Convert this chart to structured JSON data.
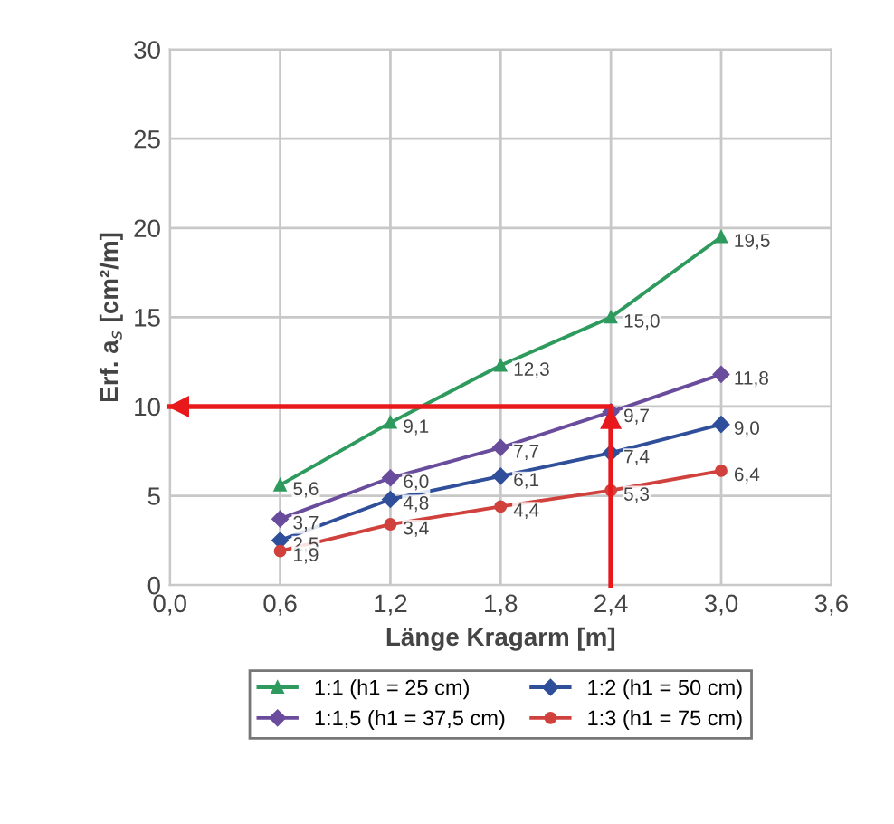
{
  "chart_data": {
    "type": "line",
    "xlabel": "Länge Kragarm [m]",
    "ylabel": "Erf. a$_{s}$ [cm²/m]",
    "x": [
      0.6,
      1.2,
      1.8,
      2.4,
      3.0
    ],
    "series": [
      {
        "name": "1:1 (h1 = 25 cm)",
        "color": "#2e9a5e",
        "marker": "triangle",
        "values": [
          5.6,
          9.1,
          12.3,
          15.0,
          19.5
        ],
        "value_labels": [
          "5,6",
          "9,1",
          "12,3",
          "15,0",
          "19,5"
        ]
      },
      {
        "name": "1:1,5 (h1 = 37,5 cm)",
        "color": "#6a4c9c",
        "marker": "diamond",
        "values": [
          3.7,
          6.0,
          7.7,
          9.7,
          11.8
        ],
        "value_labels": [
          "3,7",
          "6,0",
          "7,7",
          "9,7",
          "11,8"
        ]
      },
      {
        "name": "1:2 (h1 = 50 cm)",
        "color": "#2f4f9a",
        "marker": "diamond",
        "values": [
          2.5,
          4.8,
          6.1,
          7.4,
          9.0
        ],
        "value_labels": [
          "2,5",
          "4,8",
          "6,1",
          "7,4",
          "9,0"
        ]
      },
      {
        "name": "1:3 (h1 = 75 cm)",
        "color": "#d0413e",
        "marker": "circle",
        "values": [
          1.9,
          3.4,
          4.4,
          5.3,
          6.4
        ],
        "value_labels": [
          "1,9",
          "3,4",
          "4,4",
          "5,3",
          "6,4"
        ]
      }
    ],
    "xlim": [
      0,
      3.6
    ],
    "xticks": [
      {
        "value": 0,
        "label": "0,0"
      },
      {
        "value": 0.6,
        "label": "0,6"
      },
      {
        "value": 1.2,
        "label": "1,2"
      },
      {
        "value": 1.8,
        "label": "1,8"
      },
      {
        "value": 2.4,
        "label": "2,4"
      },
      {
        "value": 3.0,
        "label": "3,0"
      },
      {
        "value": 3.6,
        "label": "3,6"
      }
    ],
    "ylim": [
      0,
      30
    ],
    "yticks": [
      0,
      5,
      10,
      15,
      20,
      25,
      30
    ],
    "ref_lines": [
      {
        "axis": "x",
        "value": 2.4,
        "color": "#e8191c"
      },
      {
        "axis": "y",
        "value": 10,
        "color": "#e8191c"
      }
    ],
    "grid": true,
    "legend": "bottom",
    "line_style": "solid"
  }
}
